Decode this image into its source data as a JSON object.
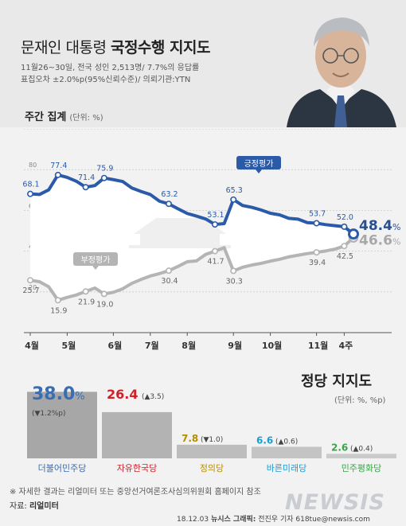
{
  "header": {
    "title_plain": "문재인 대통령",
    "title_bold": "국정수행 지지도",
    "survey_line1": "11월26~30일, 전국 성인 2,513명/ 7.7%의 응답률",
    "survey_line2": "표집오차 ±2.0%p(95%신뢰수준)/ 의뢰기관:YTN"
  },
  "weekly": {
    "title": "주간 집계",
    "unit": "(단위: %)"
  },
  "chart_data": [
    {
      "type": "line",
      "title": "주간 집계",
      "ylim": [
        0,
        100
      ],
      "y_ticks": [
        20,
        40,
        60,
        80,
        100
      ],
      "month_labels": [
        "4월",
        "5월",
        "6월",
        "7월",
        "8월",
        "9월",
        "10월",
        "11월",
        "4주"
      ],
      "series": [
        {
          "name": "긍정평가",
          "color": "#2a5aa8",
          "labeled_points": [
            {
              "label": "68.1",
              "value": 68.1
            },
            {
              "label": "77.4",
              "value": 77.4
            },
            {
              "label": "71.4",
              "value": 71.4
            },
            {
              "label": "75.9",
              "value": 75.9
            },
            {
              "label": "63.2",
              "value": 63.2
            },
            {
              "label": "53.1",
              "value": 53.1
            },
            {
              "label": "65.3",
              "value": 65.3
            },
            {
              "label": "53.7",
              "value": 53.7
            },
            {
              "label": "52.0",
              "value": 52.0
            }
          ],
          "final_label": "48.4",
          "final_value": 48.4,
          "final_unit": "%"
        },
        {
          "name": "부정평가",
          "color": "#b4b4b4",
          "labeled_points": [
            {
              "label": "25.7",
              "value": 25.7
            },
            {
              "label": "15.9",
              "value": 15.9
            },
            {
              "label": "21.9",
              "value": 21.9
            },
            {
              "label": "19.0",
              "value": 19.0
            },
            {
              "label": "30.4",
              "value": 30.4
            },
            {
              "label": "41.7",
              "value": 41.7
            },
            {
              "label": "30.3",
              "value": 30.3
            },
            {
              "label": "39.4",
              "value": 39.4
            },
            {
              "label": "42.5",
              "value": 42.5
            }
          ],
          "final_label": "46.6",
          "final_value": 46.6,
          "final_unit": "%"
        }
      ]
    },
    {
      "type": "bar",
      "title": "정당 지지도",
      "unit": "(단위: %, %p)",
      "categories": [
        "더불어민주당",
        "자유한국당",
        "정의당",
        "바른미래당",
        "민주평화당"
      ],
      "values": [
        38.0,
        26.4,
        7.8,
        6.6,
        2.6
      ],
      "value_labels": [
        "38.0",
        "26.4",
        "7.8",
        "6.6",
        "2.6"
      ],
      "value_units": [
        "%",
        "",
        "",
        "",
        ""
      ],
      "changes": [
        "(▼1.2%p)",
        "(▲3.5)",
        "(▼1.0)",
        "(▲0.6)",
        "(▲0.4)"
      ],
      "colors": [
        "#3b6db3",
        "#d0202a",
        "#b58f00",
        "#1f9ccf",
        "#3ba54a"
      ]
    }
  ],
  "footer": {
    "note": "※ 자세한 결과는 리얼미터 또는 중앙선거여론조사심의위원회 홈페이지 참조",
    "source_label": "자료:",
    "source_name": "리얼미터",
    "credit_date": "18.12.03",
    "credit_label": "뉴시스 그래픽:",
    "credit_author": "전진우 기자 618tue@newsis.com",
    "watermark": "NEWSIS"
  }
}
